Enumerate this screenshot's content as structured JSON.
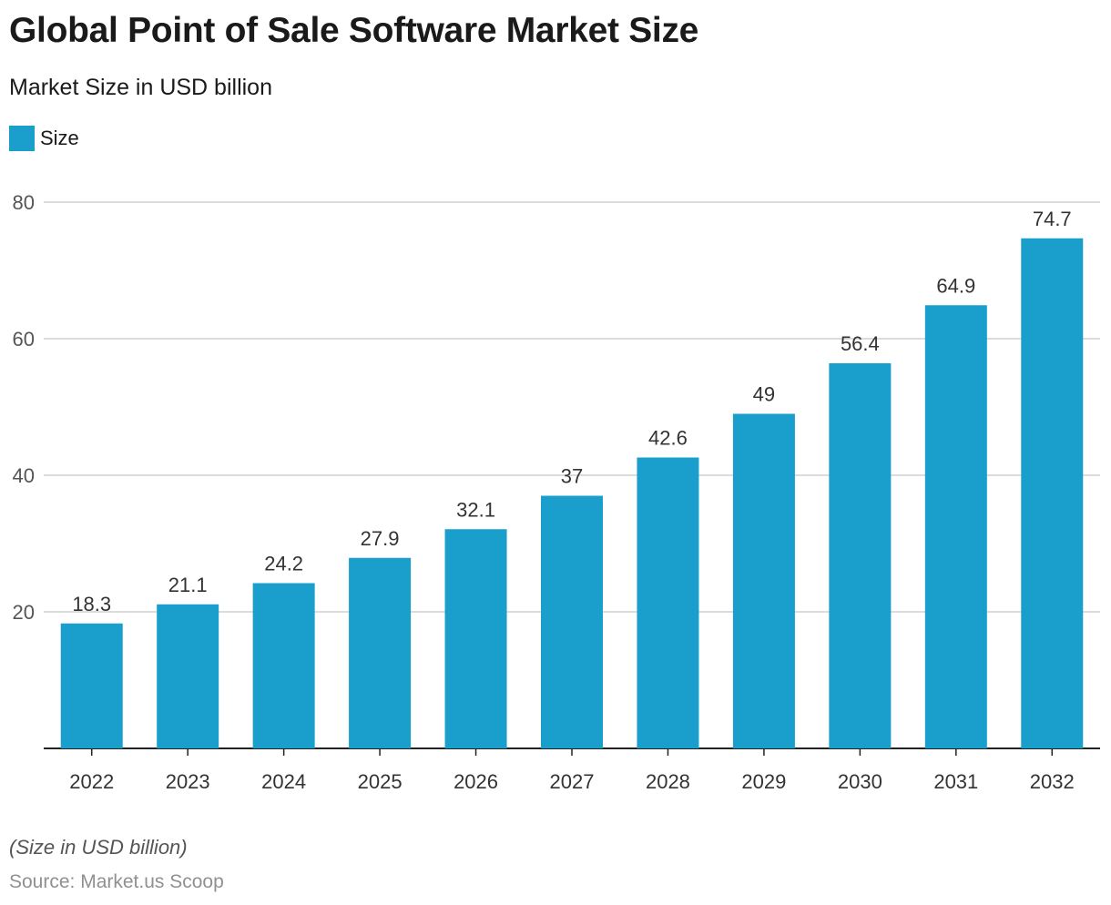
{
  "header": {
    "title": "Global Point of Sale Software Market Size",
    "subtitle": "Market Size in USD billion"
  },
  "legend": {
    "label": "Size",
    "color": "#1a9fcc"
  },
  "footer": {
    "note": "(Size in USD billion)",
    "source": "Source: Market.us Scoop"
  },
  "chart_data": {
    "type": "bar",
    "categories": [
      "2022",
      "2023",
      "2024",
      "2025",
      "2026",
      "2027",
      "2028",
      "2029",
      "2030",
      "2031",
      "2032"
    ],
    "series": [
      {
        "name": "Size",
        "values": [
          18.3,
          21.1,
          24.2,
          27.9,
          32.1,
          37,
          42.6,
          49,
          56.4,
          64.9,
          74.7
        ],
        "color": "#1a9fcc"
      }
    ],
    "data_labels": [
      "18.3",
      "21.1",
      "24.2",
      "27.9",
      "32.1",
      "37",
      "42.6",
      "49",
      "56.4",
      "64.9",
      "74.7"
    ],
    "y_ticks": [
      20,
      40,
      60,
      80
    ],
    "ylim": [
      0,
      80
    ],
    "grid": true,
    "legend_position": "top-left"
  }
}
